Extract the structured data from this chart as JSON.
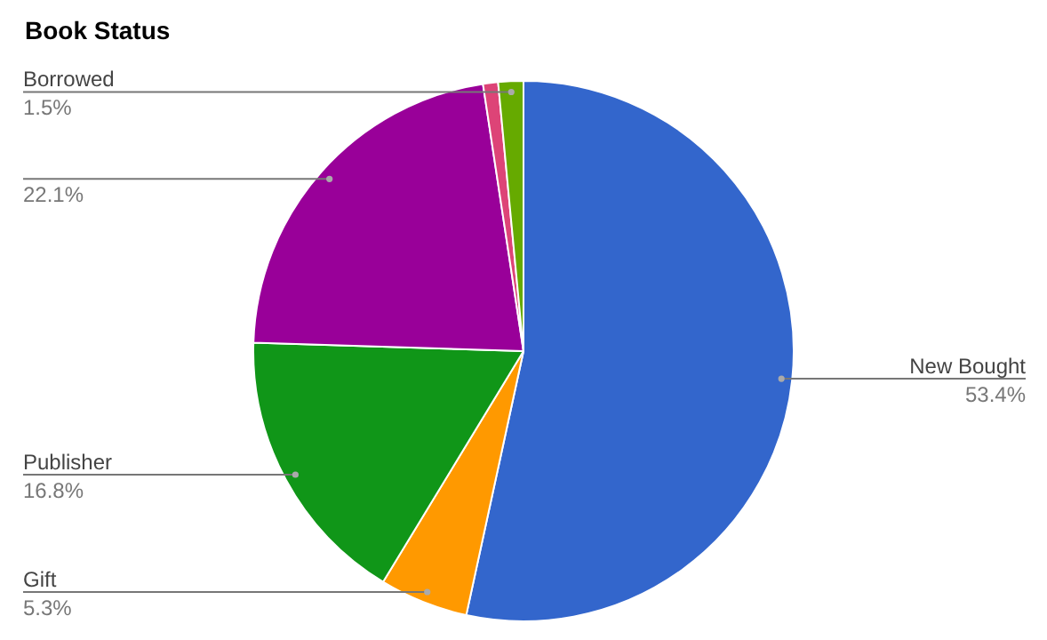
{
  "chart_data": {
    "type": "pie",
    "title": "Book Status",
    "categories": [
      "New Bought",
      "Gift",
      "Publisher",
      null,
      null,
      "Borrowed"
    ],
    "values": [
      53.4,
      5.3,
      16.8,
      22.1,
      0.9,
      1.5
    ],
    "colors": [
      "#3366cc",
      "#ff9900",
      "#109618",
      "#990099",
      "#dd4477",
      "#66aa00"
    ],
    "value_labels": [
      "53.4%",
      "5.3%",
      "16.8%",
      "22.1%",
      null,
      "1.5%"
    ]
  }
}
